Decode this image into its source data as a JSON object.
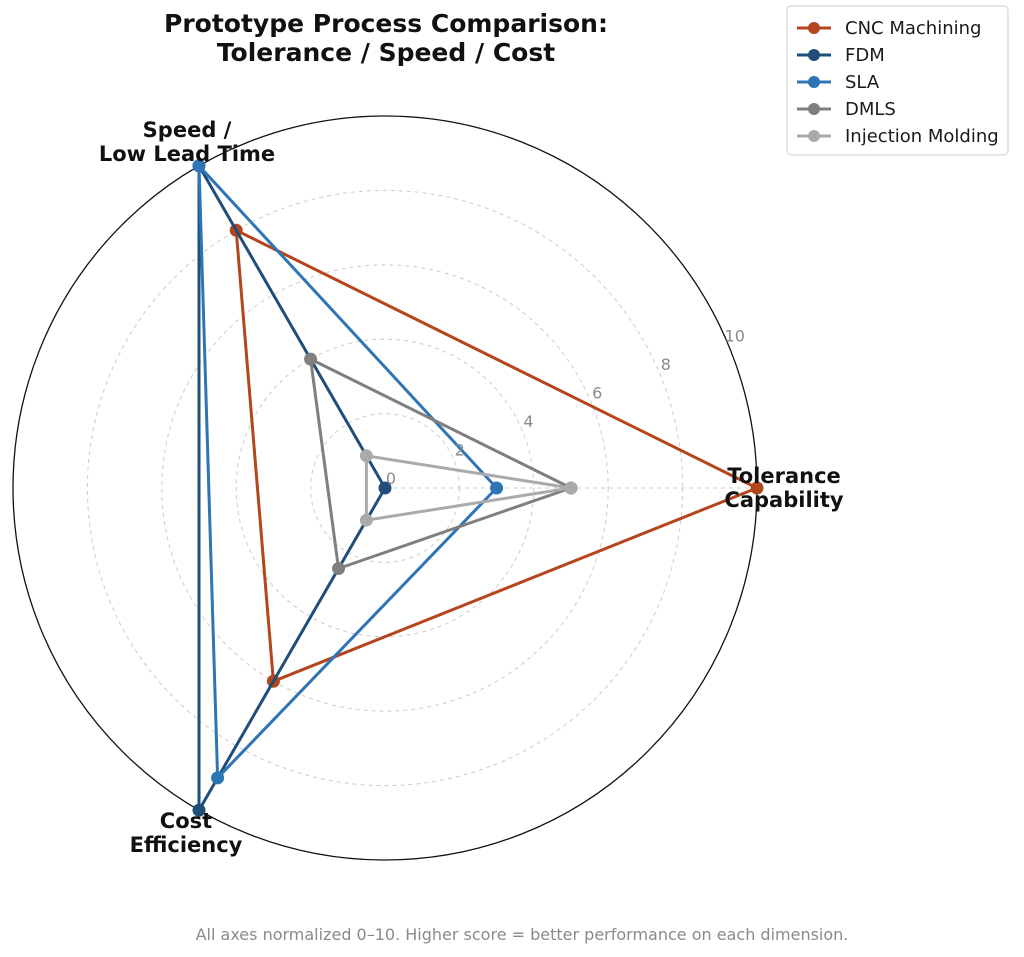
{
  "chart_data": {
    "type": "radar",
    "title": "Prototype Process Comparison:\nTolerance / Speed / Cost",
    "axes": [
      "Tolerance\nCapability",
      "Speed /\nLow Lead Time",
      "Cost\nEfficiency"
    ],
    "range": [
      0,
      10
    ],
    "ticks": [
      0,
      2,
      4,
      6,
      8,
      10
    ],
    "grid": true,
    "legend_position": "top-right",
    "series": [
      {
        "name": "CNC Machining",
        "color": "#b5451d",
        "values": [
          10,
          8,
          6
        ]
      },
      {
        "name": "FDM",
        "color": "#1f4e79",
        "values": [
          0,
          10,
          10
        ]
      },
      {
        "name": "SLA",
        "color": "#2e75b6",
        "values": [
          3,
          10,
          9
        ]
      },
      {
        "name": "DMLS",
        "color": "#7f7f7f",
        "values": [
          5,
          4,
          2.5
        ]
      },
      {
        "name": "Injection Molding",
        "color": "#aaaaaa",
        "values": [
          5,
          1,
          1
        ]
      }
    ],
    "footnote": "All axes normalized 0–10. Higher score = better performance on each dimension."
  }
}
